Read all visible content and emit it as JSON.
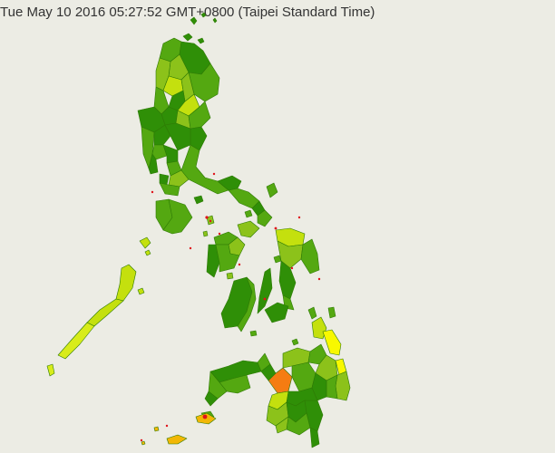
{
  "header": {
    "timestamp": "Tue May 10 2016 05:27:52 GMT+0800 (Taipei Standard Time)"
  },
  "colors": {
    "background": "#ecece4",
    "dark_green": "#2f8f07",
    "mid_green": "#54a811",
    "light_green": "#8cc21a",
    "yellow_green": "#c4e00e",
    "lime": "#d8ec1a",
    "yellow": "#f8f800",
    "orange": "#f57c12",
    "dark_orange": "#f2b705",
    "red_marker": "#e0141c"
  },
  "map": {
    "country": "Philippines"
  }
}
